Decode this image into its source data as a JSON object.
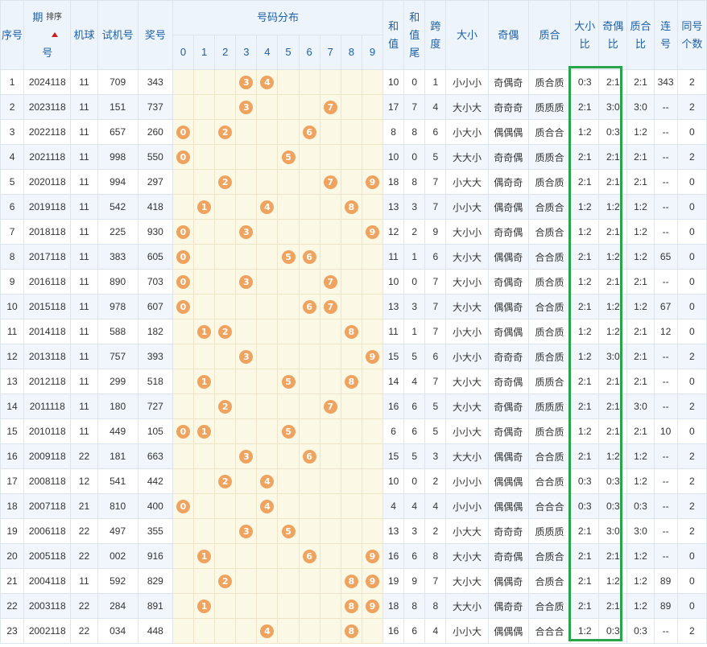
{
  "headers": {
    "seq": "序号",
    "period_1": "期",
    "period_2": "号",
    "sort_label": "排序",
    "machine": "机球",
    "trial": "试机号",
    "prize": "奖号",
    "distribution": "号码分布",
    "digits": [
      "0",
      "1",
      "2",
      "3",
      "4",
      "5",
      "6",
      "7",
      "8",
      "9"
    ],
    "sum_1": "和",
    "sum_2": "值",
    "sumtail_1": "和",
    "sumtail_2": "值",
    "sumtail_3": "尾",
    "span_1": "跨",
    "span_2": "度",
    "size": "大小",
    "parity": "奇偶",
    "prime": "质合",
    "size_ratio_1": "大小",
    "size_ratio_2": "比",
    "parity_ratio_1": "奇偶",
    "parity_ratio_2": "比",
    "prime_ratio_1": "质合",
    "prime_ratio_2": "比",
    "consec_1": "连",
    "consec_2": "号",
    "same_1": "同号",
    "same_2": "个数"
  },
  "highlight_color": "#2aa44a",
  "ball_color": "#f0a35e",
  "rows": [
    {
      "seq": "1",
      "period": "2024118",
      "machine": "11",
      "trial": "709",
      "prize": "343",
      "dist": [
        3,
        4
      ],
      "sum": "10",
      "tail": "0",
      "span": "1",
      "size": "小小小",
      "parity": "奇偶奇",
      "prime": "质合质",
      "size_ratio": "0:3",
      "parity_ratio": "2:1",
      "prime_ratio": "2:1",
      "consec": "343",
      "same": "2"
    },
    {
      "seq": "2",
      "period": "2023118",
      "machine": "11",
      "trial": "151",
      "prize": "737",
      "dist": [
        3,
        7
      ],
      "sum": "17",
      "tail": "7",
      "span": "4",
      "size": "大小大",
      "parity": "奇奇奇",
      "prime": "质质质",
      "size_ratio": "2:1",
      "parity_ratio": "3:0",
      "prime_ratio": "3:0",
      "consec": "--",
      "same": "2"
    },
    {
      "seq": "3",
      "period": "2022118",
      "machine": "11",
      "trial": "657",
      "prize": "260",
      "dist": [
        0,
        2,
        6
      ],
      "sum": "8",
      "tail": "8",
      "span": "6",
      "size": "小大小",
      "parity": "偶偶偶",
      "prime": "质合合",
      "size_ratio": "1:2",
      "parity_ratio": "0:3",
      "prime_ratio": "1:2",
      "consec": "--",
      "same": "0"
    },
    {
      "seq": "4",
      "period": "2021118",
      "machine": "11",
      "trial": "998",
      "prize": "550",
      "dist": [
        0,
        5
      ],
      "sum": "10",
      "tail": "0",
      "span": "5",
      "size": "大大小",
      "parity": "奇奇偶",
      "prime": "质质合",
      "size_ratio": "2:1",
      "parity_ratio": "2:1",
      "prime_ratio": "2:1",
      "consec": "--",
      "same": "2"
    },
    {
      "seq": "5",
      "period": "2020118",
      "machine": "11",
      "trial": "994",
      "prize": "297",
      "dist": [
        2,
        7,
        9
      ],
      "sum": "18",
      "tail": "8",
      "span": "7",
      "size": "小大大",
      "parity": "偶奇奇",
      "prime": "质合质",
      "size_ratio": "2:1",
      "parity_ratio": "2:1",
      "prime_ratio": "2:1",
      "consec": "--",
      "same": "0"
    },
    {
      "seq": "6",
      "period": "2019118",
      "machine": "11",
      "trial": "542",
      "prize": "418",
      "dist": [
        1,
        4,
        8
      ],
      "sum": "13",
      "tail": "3",
      "span": "7",
      "size": "小小大",
      "parity": "偶奇偶",
      "prime": "合质合",
      "size_ratio": "1:2",
      "parity_ratio": "1:2",
      "prime_ratio": "1:2",
      "consec": "--",
      "same": "0"
    },
    {
      "seq": "7",
      "period": "2018118",
      "machine": "11",
      "trial": "225",
      "prize": "930",
      "dist": [
        0,
        3,
        9
      ],
      "sum": "12",
      "tail": "2",
      "span": "9",
      "size": "大小小",
      "parity": "奇奇偶",
      "prime": "合质合",
      "size_ratio": "1:2",
      "parity_ratio": "2:1",
      "prime_ratio": "1:2",
      "consec": "--",
      "same": "0"
    },
    {
      "seq": "8",
      "period": "2017118",
      "machine": "11",
      "trial": "383",
      "prize": "605",
      "dist": [
        0,
        5,
        6
      ],
      "sum": "11",
      "tail": "1",
      "span": "6",
      "size": "大小大",
      "parity": "偶偶奇",
      "prime": "合合质",
      "size_ratio": "2:1",
      "parity_ratio": "1:2",
      "prime_ratio": "1:2",
      "consec": "65",
      "same": "0"
    },
    {
      "seq": "9",
      "period": "2016118",
      "machine": "11",
      "trial": "890",
      "prize": "703",
      "dist": [
        0,
        3,
        7
      ],
      "sum": "10",
      "tail": "0",
      "span": "7",
      "size": "大小小",
      "parity": "奇偶奇",
      "prime": "质合质",
      "size_ratio": "1:2",
      "parity_ratio": "2:1",
      "prime_ratio": "2:1",
      "consec": "--",
      "same": "0"
    },
    {
      "seq": "10",
      "period": "2015118",
      "machine": "11",
      "trial": "978",
      "prize": "607",
      "dist": [
        0,
        6,
        7
      ],
      "sum": "13",
      "tail": "3",
      "span": "7",
      "size": "大小大",
      "parity": "偶偶奇",
      "prime": "合合质",
      "size_ratio": "2:1",
      "parity_ratio": "1:2",
      "prime_ratio": "1:2",
      "consec": "67",
      "same": "0"
    },
    {
      "seq": "11",
      "period": "2014118",
      "machine": "11",
      "trial": "588",
      "prize": "182",
      "dist": [
        1,
        2,
        8
      ],
      "sum": "11",
      "tail": "1",
      "span": "7",
      "size": "小大小",
      "parity": "奇偶偶",
      "prime": "质合质",
      "size_ratio": "1:2",
      "parity_ratio": "1:2",
      "prime_ratio": "2:1",
      "consec": "12",
      "same": "0"
    },
    {
      "seq": "12",
      "period": "2013118",
      "machine": "11",
      "trial": "757",
      "prize": "393",
      "dist": [
        3,
        9
      ],
      "sum": "15",
      "tail": "5",
      "span": "6",
      "size": "小大小",
      "parity": "奇奇奇",
      "prime": "质合质",
      "size_ratio": "1:2",
      "parity_ratio": "3:0",
      "prime_ratio": "2:1",
      "consec": "--",
      "same": "2"
    },
    {
      "seq": "13",
      "period": "2012118",
      "machine": "11",
      "trial": "299",
      "prize": "518",
      "dist": [
        1,
        5,
        8
      ],
      "sum": "14",
      "tail": "4",
      "span": "7",
      "size": "大小大",
      "parity": "奇奇偶",
      "prime": "质质合",
      "size_ratio": "2:1",
      "parity_ratio": "2:1",
      "prime_ratio": "2:1",
      "consec": "--",
      "same": "0"
    },
    {
      "seq": "14",
      "period": "2011118",
      "machine": "11",
      "trial": "180",
      "prize": "727",
      "dist": [
        2,
        7
      ],
      "sum": "16",
      "tail": "6",
      "span": "5",
      "size": "大小大",
      "parity": "奇偶奇",
      "prime": "质质质",
      "size_ratio": "2:1",
      "parity_ratio": "2:1",
      "prime_ratio": "3:0",
      "consec": "--",
      "same": "2"
    },
    {
      "seq": "15",
      "period": "2010118",
      "machine": "11",
      "trial": "449",
      "prize": "105",
      "dist": [
        0,
        1,
        5
      ],
      "sum": "6",
      "tail": "6",
      "span": "5",
      "size": "小小大",
      "parity": "奇偶奇",
      "prime": "质合质",
      "size_ratio": "1:2",
      "parity_ratio": "2:1",
      "prime_ratio": "2:1",
      "consec": "10",
      "same": "0"
    },
    {
      "seq": "16",
      "period": "2009118",
      "machine": "22",
      "trial": "181",
      "prize": "663",
      "dist": [
        3,
        6
      ],
      "sum": "15",
      "tail": "5",
      "span": "3",
      "size": "大大小",
      "parity": "偶偶奇",
      "prime": "合合质",
      "size_ratio": "2:1",
      "parity_ratio": "1:2",
      "prime_ratio": "1:2",
      "consec": "--",
      "same": "2"
    },
    {
      "seq": "17",
      "period": "2008118",
      "machine": "12",
      "trial": "541",
      "prize": "442",
      "dist": [
        2,
        4
      ],
      "sum": "10",
      "tail": "0",
      "span": "2",
      "size": "小小小",
      "parity": "偶偶偶",
      "prime": "合合质",
      "size_ratio": "0:3",
      "parity_ratio": "0:3",
      "prime_ratio": "1:2",
      "consec": "--",
      "same": "2"
    },
    {
      "seq": "18",
      "period": "2007118",
      "machine": "21",
      "trial": "810",
      "prize": "400",
      "dist": [
        0,
        4
      ],
      "sum": "4",
      "tail": "4",
      "span": "4",
      "size": "小小小",
      "parity": "偶偶偶",
      "prime": "合合合",
      "size_ratio": "0:3",
      "parity_ratio": "0:3",
      "prime_ratio": "0:3",
      "consec": "--",
      "same": "2"
    },
    {
      "seq": "19",
      "period": "2006118",
      "machine": "22",
      "trial": "497",
      "prize": "355",
      "dist": [
        3,
        5
      ],
      "sum": "13",
      "tail": "3",
      "span": "2",
      "size": "小大大",
      "parity": "奇奇奇",
      "prime": "质质质",
      "size_ratio": "2:1",
      "parity_ratio": "3:0",
      "prime_ratio": "3:0",
      "consec": "--",
      "same": "2"
    },
    {
      "seq": "20",
      "period": "2005118",
      "machine": "22",
      "trial": "002",
      "prize": "916",
      "dist": [
        1,
        6,
        9
      ],
      "sum": "16",
      "tail": "6",
      "span": "8",
      "size": "大小大",
      "parity": "奇奇偶",
      "prime": "合质合",
      "size_ratio": "2:1",
      "parity_ratio": "2:1",
      "prime_ratio": "1:2",
      "consec": "--",
      "same": "0"
    },
    {
      "seq": "21",
      "period": "2004118",
      "machine": "11",
      "trial": "592",
      "prize": "829",
      "dist": [
        2,
        8,
        9
      ],
      "sum": "19",
      "tail": "9",
      "span": "7",
      "size": "大小大",
      "parity": "偶偶奇",
      "prime": "合质合",
      "size_ratio": "2:1",
      "parity_ratio": "1:2",
      "prime_ratio": "1:2",
      "consec": "89",
      "same": "0"
    },
    {
      "seq": "22",
      "period": "2003118",
      "machine": "22",
      "trial": "284",
      "prize": "891",
      "dist": [
        1,
        8,
        9
      ],
      "sum": "18",
      "tail": "8",
      "span": "8",
      "size": "大大小",
      "parity": "偶奇奇",
      "prime": "合合质",
      "size_ratio": "2:1",
      "parity_ratio": "2:1",
      "prime_ratio": "1:2",
      "consec": "89",
      "same": "0"
    },
    {
      "seq": "23",
      "period": "2002118",
      "machine": "22",
      "trial": "034",
      "prize": "448",
      "dist": [
        4,
        8
      ],
      "sum": "16",
      "tail": "6",
      "span": "4",
      "size": "小小大",
      "parity": "偶偶偶",
      "prime": "合合合",
      "size_ratio": "1:2",
      "parity_ratio": "0:3",
      "prime_ratio": "0:3",
      "consec": "--",
      "same": "2"
    }
  ]
}
